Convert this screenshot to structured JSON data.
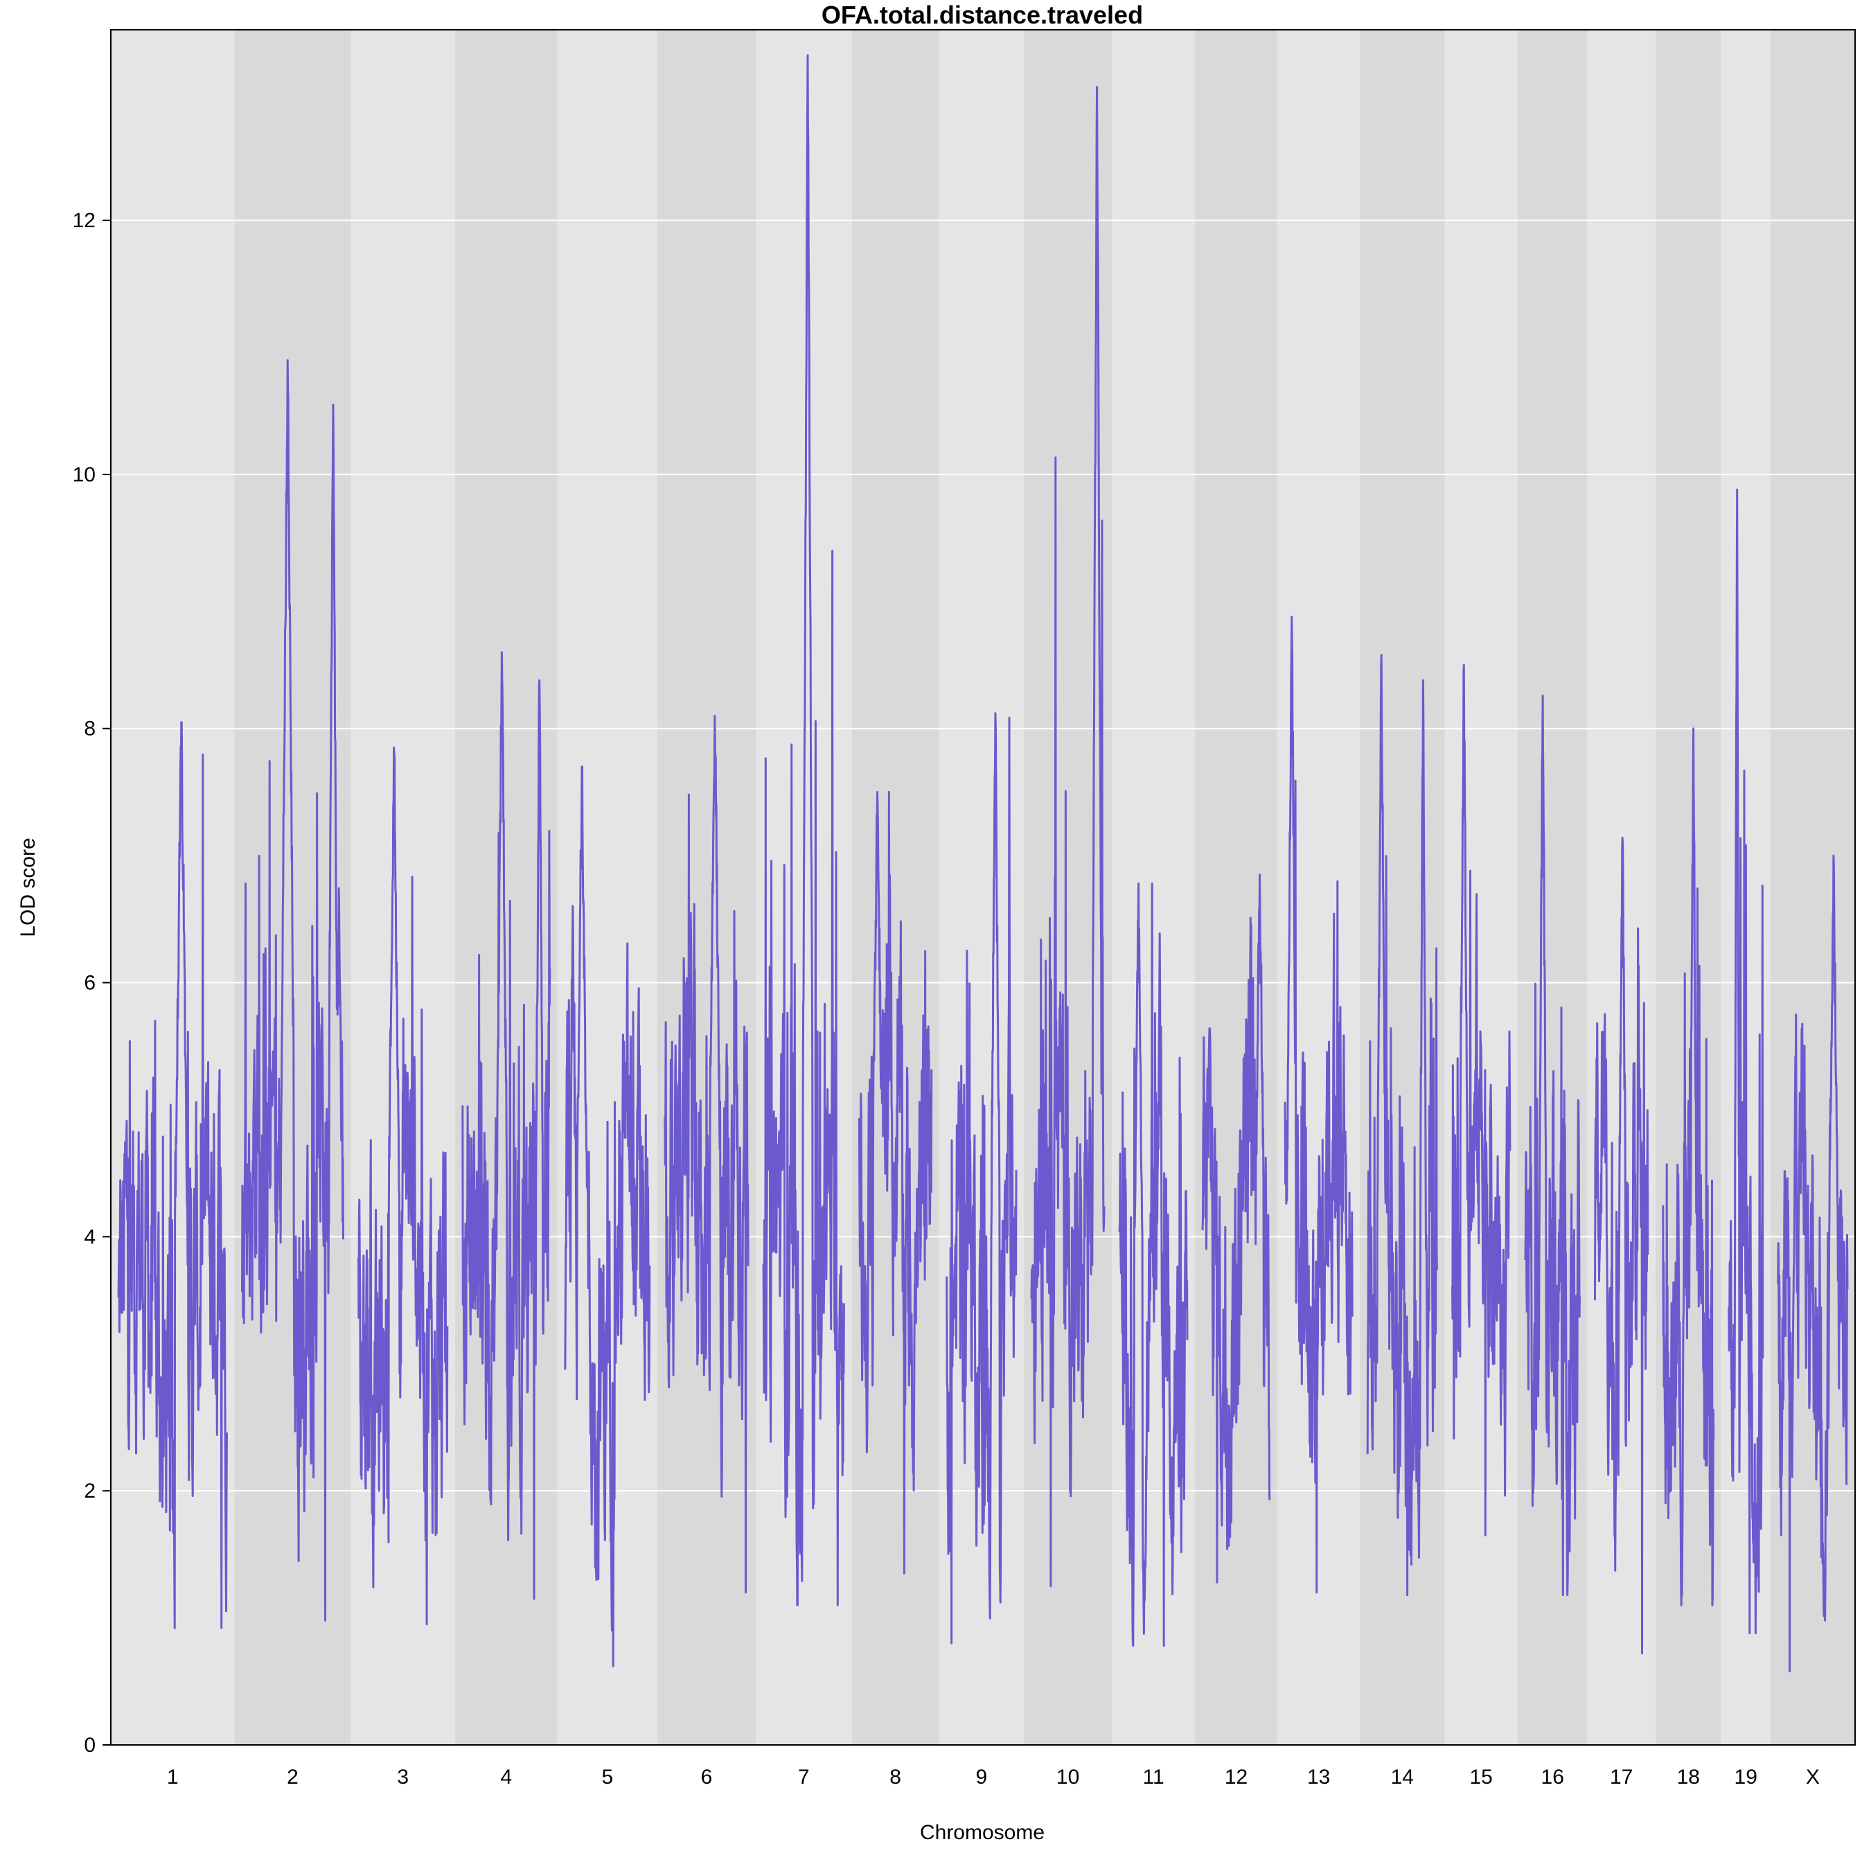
{
  "chart_data": {
    "type": "line",
    "title": "OFA.total.distance.traveled",
    "xlabel": "Chromosome",
    "ylabel": "LOD score",
    "ylim": [
      0,
      13.5
    ],
    "yticks": [
      0,
      2,
      4,
      6,
      8,
      10,
      12
    ],
    "grid": true,
    "line_color": "#6a5acd",
    "band_colors": [
      "#e5e5e5",
      "#d9d9d9"
    ],
    "chromosomes": [
      {
        "name": "1",
        "length": 195,
        "peak": 8.05,
        "peak_pos": 0.58,
        "min": 0.92,
        "base": 3.2
      },
      {
        "name": "2",
        "length": 182,
        "peak": 10.9,
        "peak_pos": 0.45,
        "min": 0.98,
        "base": 4.2,
        "peak2": 10.55,
        "peak2_pos": 0.9
      },
      {
        "name": "3",
        "length": 160,
        "peak": 7.85,
        "peak_pos": 0.4,
        "min": 0.95,
        "base": 3.6
      },
      {
        "name": "4",
        "length": 157,
        "peak": 8.6,
        "peak_pos": 0.45,
        "min": 1.15,
        "base": 3.4,
        "peak2": 8.38,
        "peak2_pos": 0.88
      },
      {
        "name": "5",
        "length": 152,
        "peak": 7.7,
        "peak_pos": 0.2,
        "min": 0.62,
        "base": 3.6
      },
      {
        "name": "6",
        "length": 150,
        "peak": 8.1,
        "peak_pos": 0.6,
        "min": 1.2,
        "base": 4.2
      },
      {
        "name": "7",
        "length": 145,
        "peak": 13.3,
        "peak_pos": 0.55,
        "min": 1.1,
        "base": 3.4
      },
      {
        "name": "8",
        "length": 130,
        "peak": 7.5,
        "peak_pos": 0.25,
        "min": 1.35,
        "base": 4.4
      },
      {
        "name": "9",
        "length": 125,
        "peak": 8.12,
        "peak_pos": 0.7,
        "min": 0.8,
        "base": 3.4
      },
      {
        "name": "10",
        "length": 131,
        "peak": 13.05,
        "peak_pos": 0.9,
        "min": 1.25,
        "base": 4.2
      },
      {
        "name": "11",
        "length": 122,
        "peak": 6.78,
        "peak_pos": 0.28,
        "min": 0.78,
        "base": 3.3
      },
      {
        "name": "12",
        "length": 121,
        "peak": 6.85,
        "peak_pos": 0.85,
        "min": 1.28,
        "base": 3.8
      },
      {
        "name": "13",
        "length": 121,
        "peak": 8.88,
        "peak_pos": 0.1,
        "min": 1.2,
        "base": 4.2
      },
      {
        "name": "14",
        "length": 125,
        "peak": 8.58,
        "peak_pos": 0.2,
        "min": 1.18,
        "base": 3.2,
        "peak2": 8.38,
        "peak2_pos": 0.8
      },
      {
        "name": "15",
        "length": 104,
        "peak": 8.5,
        "peak_pos": 0.2,
        "min": 1.65,
        "base": 4.2
      },
      {
        "name": "16",
        "length": 98,
        "peak": 8.26,
        "peak_pos": 0.32,
        "min": 1.18,
        "base": 3.6
      },
      {
        "name": "17",
        "length": 95,
        "peak": 7.14,
        "peak_pos": 0.52,
        "min": 0.72,
        "base": 3.8
      },
      {
        "name": "18",
        "length": 91,
        "peak": 8.0,
        "peak_pos": 0.6,
        "min": 1.1,
        "base": 3.4
      },
      {
        "name": "19",
        "length": 61,
        "peak": 9.88,
        "peak_pos": 0.24,
        "min": 0.88,
        "base": 3.0
      },
      {
        "name": "X",
        "length": 125,
        "peak": 7.0,
        "peak_pos": 0.8,
        "min": 0.58,
        "base": 3.6
      }
    ]
  }
}
